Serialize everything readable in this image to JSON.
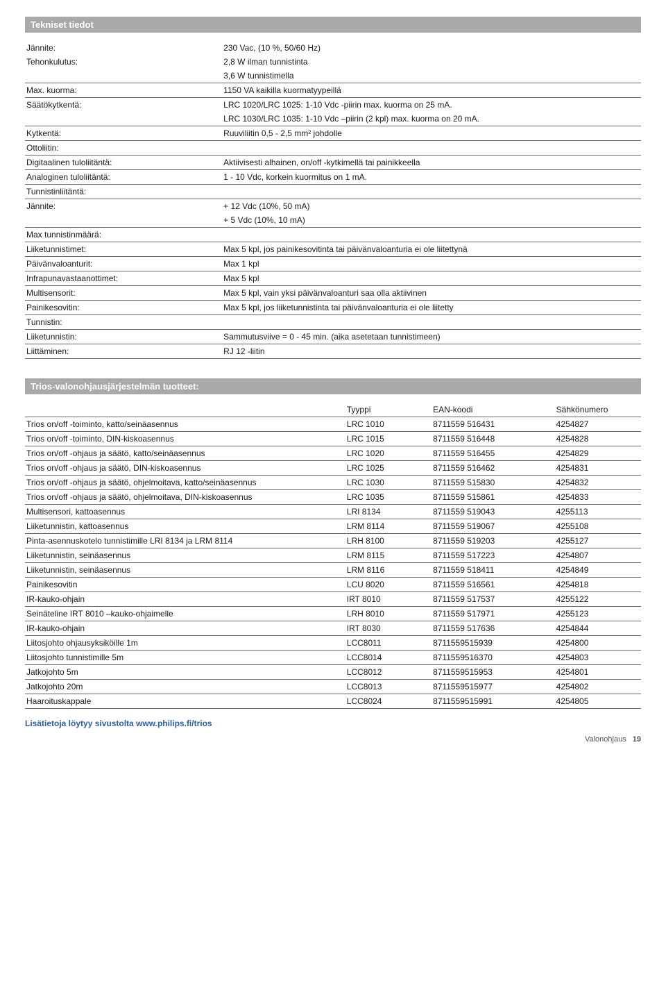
{
  "header1": "Tekniset tiedot",
  "spec": {
    "rows": [
      {
        "label": "Jännite:",
        "value": "230 Vac, (10 %, 50/60 Hz)",
        "border": false
      },
      {
        "label": "Tehonkulutus:",
        "value": "2,8 W ilman tunnistinta",
        "border": false
      },
      {
        "label": "",
        "value": "3,6 W tunnistimella",
        "border": true
      },
      {
        "label": "Max. kuorma:",
        "value": "1150 VA kaikilla kuormatyypeillä",
        "border": true
      },
      {
        "label": "Säätökytkentä:",
        "value": "LRC 1020/LRC 1025: 1-10 Vdc -piirin max. kuorma on 25 mA.",
        "border": false
      },
      {
        "label": "",
        "value": "LRC 1030/LRC 1035: 1-10 Vdc –piirin (2 kpl) max. kuorma on 20 mA.",
        "border": true
      },
      {
        "label": "Kytkentä:",
        "value": "Ruuviliitin 0,5 - 2,5 mm² johdolle",
        "border": true
      },
      {
        "label": "Ottoliitin:",
        "value": "",
        "border": true
      },
      {
        "label": "Digitaalinen tuloliitäntä:",
        "value": "Aktiivisesti alhainen, on/off -kytkimellä tai painikkeella",
        "border": true
      },
      {
        "label": "Analoginen tuloliitäntä:",
        "value": "1 - 10 Vdc, korkein kuormitus on 1 mA.",
        "border": true
      },
      {
        "label": "Tunnistinliitäntä:",
        "value": "",
        "border": true
      },
      {
        "label": "Jännite:",
        "value": "+ 12 Vdc (10%, 50 mA)",
        "border": false
      },
      {
        "label": "",
        "value": "+ 5 Vdc (10%, 10 mA)",
        "border": true
      },
      {
        "label": "Max tunnistinmäärä:",
        "value": "",
        "border": true
      },
      {
        "label": "Liiketunnistimet:",
        "value": "Max 5 kpl, jos painikesovitinta tai päivänvaloanturia ei ole liitettynä",
        "border": true
      },
      {
        "label": "Päivänvaloanturit:",
        "value": "Max 1 kpl",
        "border": true
      },
      {
        "label": "Infrapunavastaanottimet:",
        "value": "Max 5 kpl",
        "border": true
      },
      {
        "label": "Multisensorit:",
        "value": "Max 5 kpl, vain yksi päivänvaloanturi saa olla aktiivinen",
        "border": true
      },
      {
        "label": "Painikesovitin:",
        "value": "Max 5 kpl, jos liiketunnistinta tai päivänvaloanturia ei ole liitetty",
        "border": true
      },
      {
        "label": "Tunnistin:",
        "value": "",
        "border": true
      },
      {
        "label": "Liiketunnistin:",
        "value": "Sammutusviive = 0 - 45 min. (aika asetetaan tunnistimeen)",
        "border": true
      },
      {
        "label": "Liittäminen:",
        "value": "RJ 12 -liitin",
        "border": true
      }
    ]
  },
  "header2": "Trios-valonohjausjärjestelmän tuotteet:",
  "products": {
    "head": [
      "",
      "Tyyppi",
      "EAN-koodi",
      "Sähkönumero"
    ],
    "rows": [
      [
        "Trios on/off -toiminto, katto/seinäasennus",
        "LRC 1010",
        "8711559 516431",
        "4254827"
      ],
      [
        "Trios on/off -toiminto, DIN-kiskoasennus",
        "LRC 1015",
        "8711559 516448",
        "4254828"
      ],
      [
        "Trios on/off -ohjaus ja säätö, katto/seinäasennus",
        "LRC 1020",
        "8711559 516455",
        "4254829"
      ],
      [
        "Trios on/off -ohjaus ja säätö, DIN-kiskoasennus",
        "LRC 1025",
        "8711559 516462",
        "4254831"
      ],
      [
        "Trios on/off -ohjaus ja säätö, ohjelmoitava, katto/seinäasennus",
        "LRC 1030",
        "8711559 515830",
        "4254832"
      ],
      [
        "Trios on/off -ohjaus ja säätö, ohjelmoitava, DIN-kiskoasennus",
        "LRC 1035",
        "8711559 515861",
        "4254833"
      ],
      [
        "Multisensori, kattoasennus",
        "LRI 8134",
        "8711559 519043",
        "4255113"
      ],
      [
        "Liiketunnistin, kattoasennus",
        "LRM 8114",
        "8711559 519067",
        "4255108"
      ],
      [
        "Pinta-asennuskotelo tunnistimille LRI 8134 ja LRM 8114",
        "LRH 8100",
        "8711559 519203",
        "4255127"
      ],
      [
        "Liiketunnistin, seinäasennus",
        "LRM 8115",
        "8711559 517223",
        "4254807"
      ],
      [
        "Liiketunnistin, seinäasennus",
        "LRM 8116",
        "8711559 518411",
        "4254849"
      ],
      [
        "Painikesovitin",
        "LCU 8020",
        "8711559 516561",
        "4254818"
      ],
      [
        "IR-kauko-ohjain",
        "IRT 8010",
        "8711559 517537",
        "4255122"
      ],
      [
        "Seinäteline IRT 8010 –kauko-ohjaimelle",
        "LRH 8010",
        "8711559 517971",
        "4255123"
      ],
      [
        "IR-kauko-ohjain",
        "IRT 8030",
        "8711559 517636",
        "4254844"
      ],
      [
        "Liitosjohto ohjausyksiköille 1m",
        "LCC8011",
        "8711559515939",
        "4254800"
      ],
      [
        "Liitosjohto tunnistimille 5m",
        "LCC8014",
        "8711559516370",
        "4254803"
      ],
      [
        "Jatkojohto 5m",
        "LCC8012",
        "8711559515953",
        "4254801"
      ],
      [
        "Jatkojohto 20m",
        "LCC8013",
        "8711559515977",
        "4254802"
      ],
      [
        "Haaroituskappale",
        "LCC8024",
        "8711559515991",
        "4254805"
      ]
    ]
  },
  "link_text": "Lisätietoja löytyy sivustolta www.philips.fi/trios",
  "footer_label": "Valonohjaus",
  "footer_page": "19"
}
